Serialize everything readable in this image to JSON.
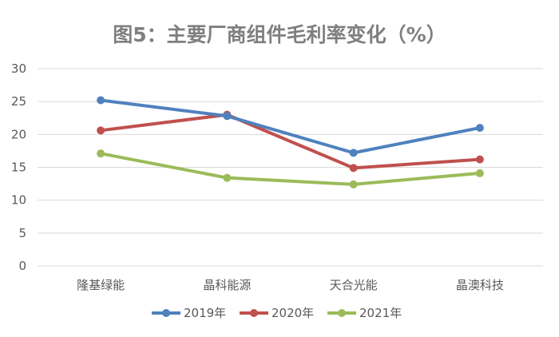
{
  "chart_data": {
    "type": "line",
    "title": "图5：主要厂商组件毛利率变化（%）",
    "categories": [
      "隆基绿能",
      "晶科能源",
      "天合光能",
      "晶澳科技"
    ],
    "series": [
      {
        "name": "2019年",
        "color": "#4f81bd",
        "values": [
          25.2,
          22.8,
          17.2,
          21.0
        ]
      },
      {
        "name": "2020年",
        "color": "#c0504d",
        "values": [
          20.6,
          23.0,
          14.9,
          16.2
        ]
      },
      {
        "name": "2021年",
        "color": "#9bbb59",
        "values": [
          17.1,
          13.4,
          12.4,
          14.1
        ]
      }
    ],
    "yticks": [
      "0",
      "5",
      "10",
      "15",
      "20",
      "25",
      "30"
    ],
    "ylim": [
      0,
      30
    ],
    "grid": true,
    "legend_position": "bottom"
  }
}
